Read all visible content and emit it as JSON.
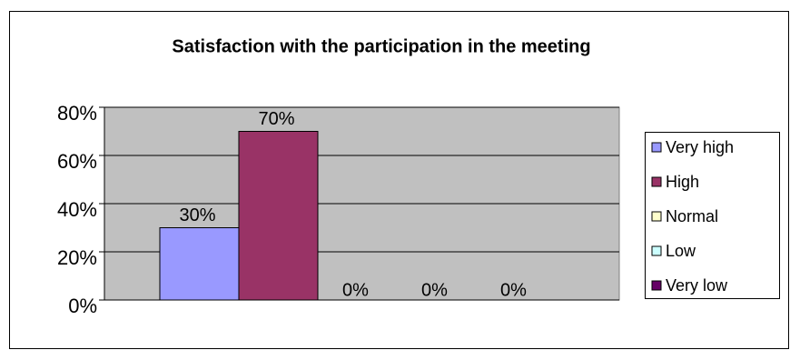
{
  "chart_data": {
    "type": "bar",
    "title": "Satisfaction with the participation in the meeting",
    "categories": [
      null
    ],
    "series": [
      {
        "name": "Very high",
        "color": "#9999ff",
        "values": [
          30
        ],
        "value_labels": [
          "30%"
        ]
      },
      {
        "name": "High",
        "color": "#993366",
        "values": [
          70
        ],
        "value_labels": [
          "70%"
        ]
      },
      {
        "name": "Normal",
        "color": "#ffffcc",
        "values": [
          0
        ],
        "value_labels": [
          "0%"
        ]
      },
      {
        "name": "Low",
        "color": "#ccffff",
        "values": [
          0
        ],
        "value_labels": [
          "0%"
        ]
      },
      {
        "name": "Very low",
        "color": "#660066",
        "values": [
          0
        ],
        "value_labels": [
          "0%"
        ]
      }
    ],
    "ylim": [
      0,
      80
    ],
    "yticks": [
      {
        "value": 0,
        "label": "0%"
      },
      {
        "value": 20,
        "label": "20%"
      },
      {
        "value": 40,
        "label": "40%"
      },
      {
        "value": 60,
        "label": "60%"
      },
      {
        "value": 80,
        "label": "80%"
      }
    ],
    "grid": true,
    "legend": "right"
  }
}
